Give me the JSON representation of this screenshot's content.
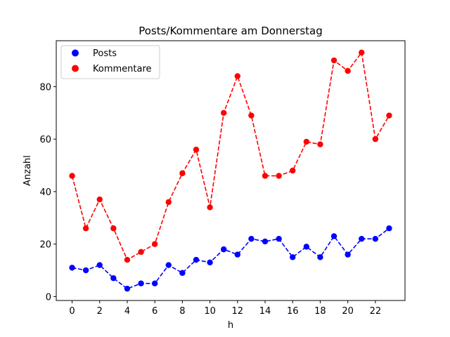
{
  "chart_data": {
    "type": "line",
    "title": "Posts/Kommentare am Donnerstag",
    "xlabel": "h",
    "ylabel": "Anzahl",
    "x": [
      0,
      1,
      2,
      3,
      4,
      5,
      6,
      7,
      8,
      9,
      10,
      11,
      12,
      13,
      14,
      15,
      16,
      17,
      18,
      19,
      20,
      21,
      22,
      23
    ],
    "x_ticks": [
      0,
      2,
      4,
      6,
      8,
      10,
      12,
      14,
      16,
      18,
      20,
      22
    ],
    "y_ticks": [
      0,
      20,
      40,
      60,
      80
    ],
    "xlim": [
      -1.15,
      24.15
    ],
    "ylim": [
      -1.5,
      97.5
    ],
    "grid": false,
    "legend_position": "top-left",
    "series": [
      {
        "name": "Posts",
        "color": "#0000ff",
        "line_style": "dashed",
        "marker": "circle",
        "values": [
          11,
          10,
          12,
          7,
          3,
          5,
          5,
          12,
          9,
          14,
          13,
          18,
          16,
          22,
          21,
          22,
          15,
          19,
          15,
          23,
          16,
          22,
          22,
          26
        ]
      },
      {
        "name": "Kommentare",
        "color": "#ff0000",
        "line_style": "dashed",
        "marker": "circle",
        "values": [
          46,
          26,
          37,
          26,
          14,
          17,
          20,
          36,
          47,
          56,
          34,
          70,
          84,
          69,
          46,
          46,
          48,
          59,
          58,
          90,
          86,
          93,
          60,
          69
        ]
      }
    ]
  }
}
